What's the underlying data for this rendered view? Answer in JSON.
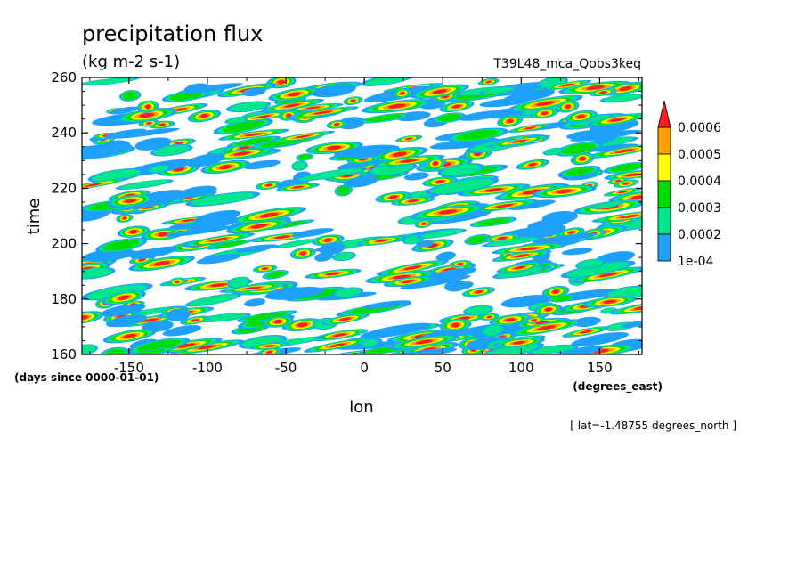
{
  "chart_data": {
    "type": "heatmap",
    "title": "precipitation flux",
    "units": "(kg m-2 s-1)",
    "run_label": "T39L48_mca_Qobs3keq",
    "xlabel": "lon",
    "xunits": "(degrees_east)",
    "ylabel": "time",
    "yunits": "(days since 0000-01-01)",
    "annotation": "[ lat=-1.48755 degrees_north ]",
    "xlim": [
      -180,
      177
    ],
    "ylim": [
      160,
      260
    ],
    "xticks": [
      -150,
      -100,
      -50,
      0,
      50,
      100,
      150
    ],
    "yticks": [
      160,
      180,
      200,
      220,
      240,
      260
    ],
    "xtick_labels": [
      "-150",
      "-100",
      "-50",
      "0",
      "50",
      "100",
      "150"
    ],
    "ytick_labels": [
      "160",
      "180",
      "200",
      "220",
      "240",
      "260"
    ],
    "colorbar": {
      "levels": [
        0.0001,
        0.0002,
        0.0003,
        0.0004,
        0.0005,
        0.0006
      ],
      "level_labels": [
        "1e-04",
        "0.0002",
        "0.0003",
        "0.0004",
        "0.0005",
        "0.0006"
      ],
      "colors": [
        "#ffffff",
        "#1ea0ff",
        "#00e68c",
        "#00dc00",
        "#ffff00",
        "#ffa000",
        "#ff1e1e"
      ],
      "extend": "max"
    },
    "pattern": "eastward-propagating precipitation streaks (filled contours)",
    "grid": false
  }
}
